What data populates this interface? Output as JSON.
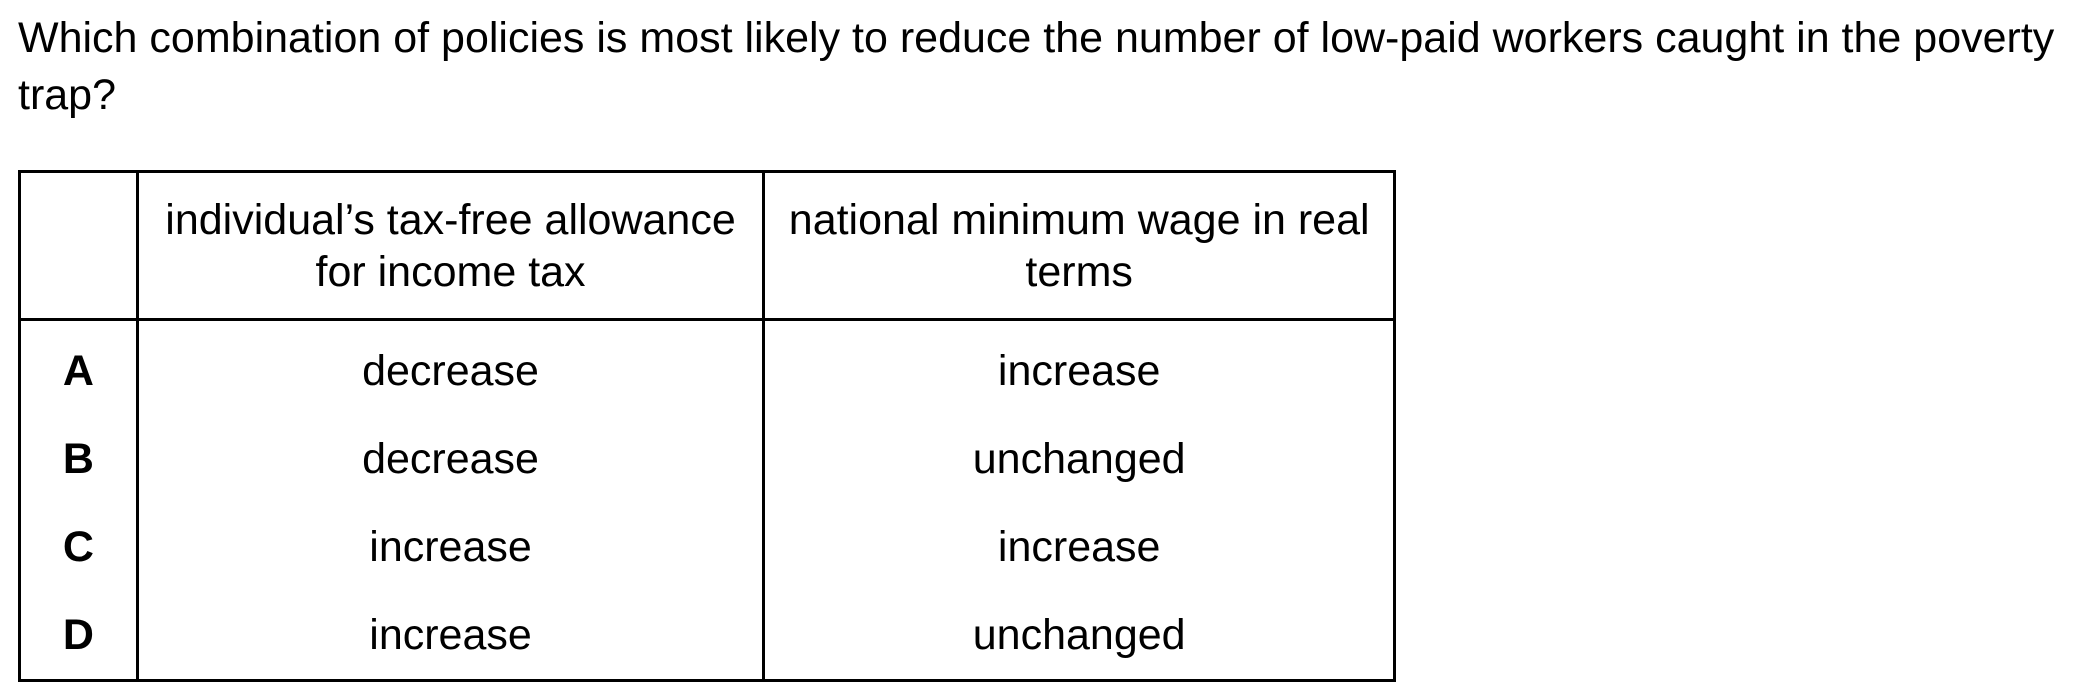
{
  "question": {
    "text": "Which combination of policies is most likely to reduce the number of low-paid workers caught in the poverty trap?"
  },
  "table": {
    "headers": [
      "",
      "individual’s tax-free allowance for income tax",
      "national minimum wage in real terms"
    ],
    "rows": [
      {
        "option": "A",
        "tax_free_allowance": "decrease",
        "minimum_wage": "increase"
      },
      {
        "option": "B",
        "tax_free_allowance": "decrease",
        "minimum_wage": "unchanged"
      },
      {
        "option": "C",
        "tax_free_allowance": "increase",
        "minimum_wage": "increase"
      },
      {
        "option": "D",
        "tax_free_allowance": "increase",
        "minimum_wage": "unchanged"
      }
    ]
  }
}
